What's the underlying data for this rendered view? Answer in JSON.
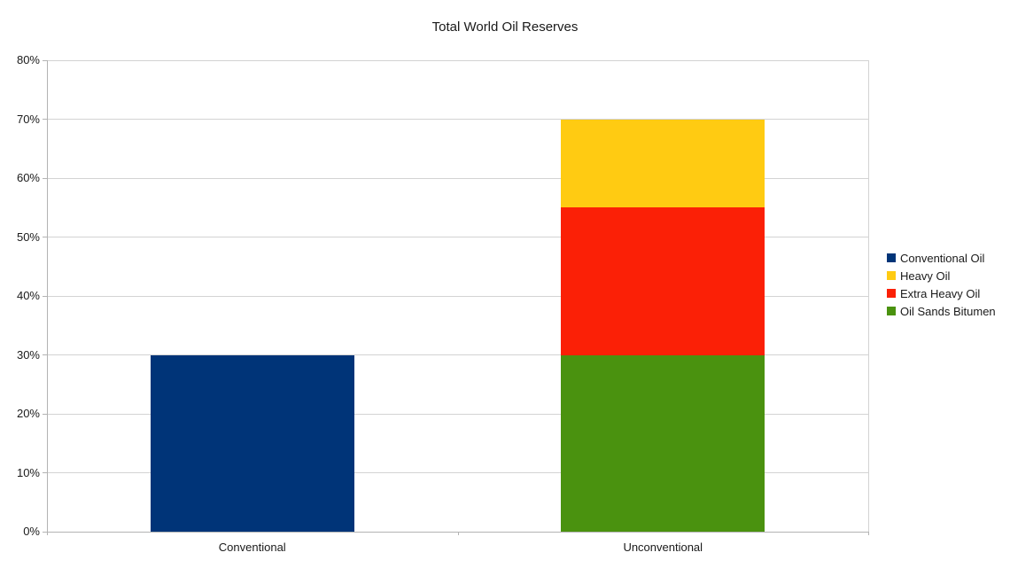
{
  "chart_data": {
    "type": "bar",
    "stacked": true,
    "title": "Total World Oil Reserves",
    "categories": [
      "Conventional",
      "Unconventional"
    ],
    "series": [
      {
        "name": "Conventional Oil",
        "color": "#003478",
        "values": [
          30,
          0
        ]
      },
      {
        "name": "Oil Sands Bitumen",
        "color": "#4A920F",
        "values": [
          0,
          30
        ]
      },
      {
        "name": "Extra Heavy Oil",
        "color": "#FB2006",
        "values": [
          0,
          25
        ]
      },
      {
        "name": "Heavy Oil",
        "color": "#FFCB12",
        "values": [
          0,
          15
        ]
      }
    ],
    "legend_order": [
      "Conventional Oil",
      "Heavy Oil",
      "Extra Heavy Oil",
      "Oil Sands Bitumen"
    ],
    "legend_position": "right",
    "xlabel": "",
    "ylabel": "",
    "ylim": [
      0,
      80
    ],
    "ytick_step": 10,
    "ytick_labels": [
      "0%",
      "10%",
      "20%",
      "30%",
      "40%",
      "50%",
      "60%",
      "70%",
      "80%"
    ],
    "grid": true
  },
  "colors": {
    "background": "#ffffff",
    "gridline": "#d3d3d3",
    "axis": "#b3b3b3",
    "text": "#1a1a1a"
  }
}
